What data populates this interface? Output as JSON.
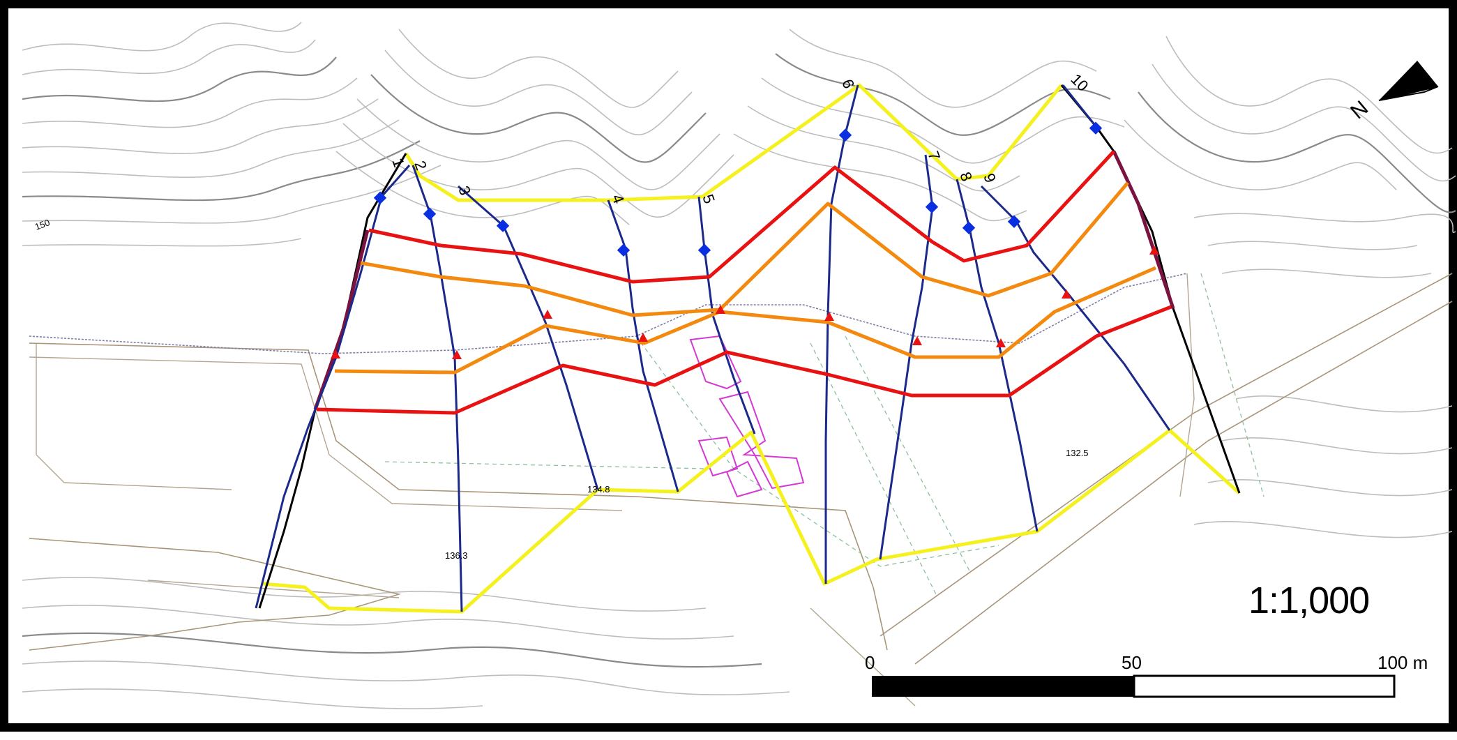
{
  "map": {
    "scale_ratio": "1:1,000",
    "north_label": "N",
    "scale_bar": {
      "tick_0": "0",
      "tick_mid": "50",
      "tick_end": "100 m"
    },
    "profile_labels": [
      "1",
      "2",
      "3",
      "4",
      "5",
      "6",
      "7",
      "8",
      "9",
      "10"
    ],
    "elevation_labels": [
      "150",
      "134.8",
      "136.3",
      "132.5"
    ],
    "colors": {
      "boundary": "#f4f11e",
      "profile_lines": "#1b2a8a",
      "zone_red": "#e81212",
      "zone_orange": "#f3890e",
      "marker_blue": "#0a2fe0",
      "marker_red": "#e81212",
      "buildings": "#d23ad2"
    }
  }
}
